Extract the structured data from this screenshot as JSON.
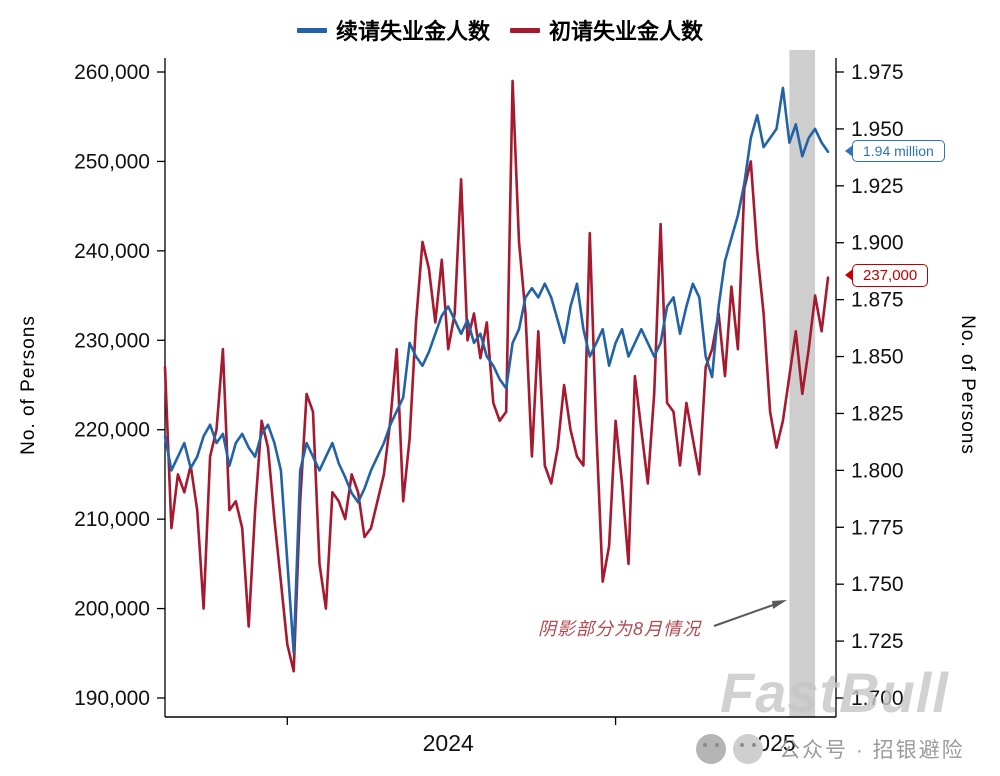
{
  "chart_data": {
    "type": "line",
    "x_unit": "week",
    "x_labels": [
      "2024",
      "2025"
    ],
    "x_label_index": [
      44,
      94
    ],
    "x_tick_index": [
      19,
      70
    ],
    "left_axis": {
      "title": "No. of Persons",
      "min": 190000,
      "max": 260000,
      "tick_values": [
        190000,
        200000,
        210000,
        220000,
        230000,
        240000,
        250000,
        260000
      ],
      "tick_labels": [
        "190,000",
        "200,000",
        "210,000",
        "220,000",
        "230,000",
        "240,000",
        "250,000",
        "260,000"
      ]
    },
    "right_axis": {
      "title": "No. of Persons",
      "min": 1.7,
      "max": 1.975,
      "tick_values": [
        1.7,
        1.725,
        1.75,
        1.775,
        1.8,
        1.825,
        1.85,
        1.875,
        1.9,
        1.925,
        1.95,
        1.975
      ],
      "tick_labels": [
        "1.700",
        "1.725",
        "1.750",
        "1.775",
        "1.800",
        "1.825",
        "1.850",
        "1.875",
        "1.900",
        "1.925",
        "1.950",
        "1.975"
      ]
    },
    "series": [
      {
        "name": "续请失业金人数",
        "axis": "right",
        "unit": "million persons",
        "color": "#2262a8",
        "values": [
          1.815,
          1.8,
          1.806,
          1.812,
          1.801,
          1.806,
          1.815,
          1.82,
          1.812,
          1.816,
          1.802,
          1.812,
          1.816,
          1.81,
          1.806,
          1.816,
          1.82,
          1.812,
          1.8,
          1.76,
          1.72,
          1.8,
          1.812,
          1.806,
          1.8,
          1.806,
          1.812,
          1.803,
          1.797,
          1.79,
          1.786,
          1.792,
          1.8,
          1.806,
          1.812,
          1.82,
          1.826,
          1.832,
          1.856,
          1.85,
          1.846,
          1.852,
          1.86,
          1.868,
          1.872,
          1.866,
          1.86,
          1.866,
          1.856,
          1.86,
          1.85,
          1.846,
          1.84,
          1.836,
          1.856,
          1.862,
          1.876,
          1.88,
          1.876,
          1.882,
          1.876,
          1.866,
          1.856,
          1.872,
          1.882,
          1.862,
          1.85,
          1.856,
          1.862,
          1.846,
          1.856,
          1.862,
          1.85,
          1.856,
          1.862,
          1.856,
          1.85,
          1.856,
          1.872,
          1.876,
          1.86,
          1.872,
          1.882,
          1.876,
          1.85,
          1.841,
          1.872,
          1.892,
          1.902,
          1.912,
          1.926,
          1.946,
          1.956,
          1.942,
          1.946,
          1.95,
          1.968,
          1.944,
          1.952,
          1.938,
          1.946,
          1.95,
          1.944,
          1.94
        ]
      },
      {
        "name": "初请失业金人数",
        "axis": "left",
        "unit": "persons",
        "color": "#a6192e",
        "values": [
          227000,
          209000,
          215000,
          213000,
          216000,
          211000,
          200000,
          217000,
          220000,
          229000,
          211000,
          212000,
          209000,
          198000,
          211000,
          221000,
          218000,
          210000,
          203000,
          196000,
          193000,
          212000,
          224000,
          222000,
          205000,
          200000,
          213000,
          212000,
          210000,
          215000,
          213000,
          208000,
          209000,
          212000,
          215000,
          221000,
          229000,
          212000,
          219000,
          232000,
          241000,
          238000,
          232000,
          239000,
          229000,
          233000,
          248000,
          230000,
          233000,
          228000,
          232000,
          223000,
          221000,
          222000,
          259000,
          241000,
          233000,
          217000,
          231000,
          216000,
          214000,
          218000,
          225000,
          220000,
          217000,
          216000,
          242000,
          220000,
          203000,
          207000,
          221000,
          214000,
          205000,
          226000,
          220000,
          214000,
          224000,
          243000,
          223000,
          222000,
          216000,
          223000,
          219000,
          215000,
          227000,
          229000,
          233000,
          226000,
          236000,
          229000,
          247000,
          250000,
          240000,
          233000,
          222000,
          218000,
          221000,
          226000,
          231000,
          224000,
          229000,
          235000,
          231000,
          237000
        ]
      }
    ],
    "shaded_region": {
      "label": "8月",
      "start_index": 97,
      "end_index": 101,
      "color": "#c9c9c9"
    },
    "annotation": {
      "text": "阴影部分为8月情况",
      "color": "#b04a50"
    },
    "callouts": [
      {
        "text": "1.94 million",
        "color": "#2e75b6",
        "series": "续请失业金人数"
      },
      {
        "text": "237,000",
        "color": "#c00000",
        "series": "初请失业金人数"
      }
    ]
  },
  "footer": {
    "watermark": "FastBull",
    "social_text": "公众号 · 招银避险"
  }
}
